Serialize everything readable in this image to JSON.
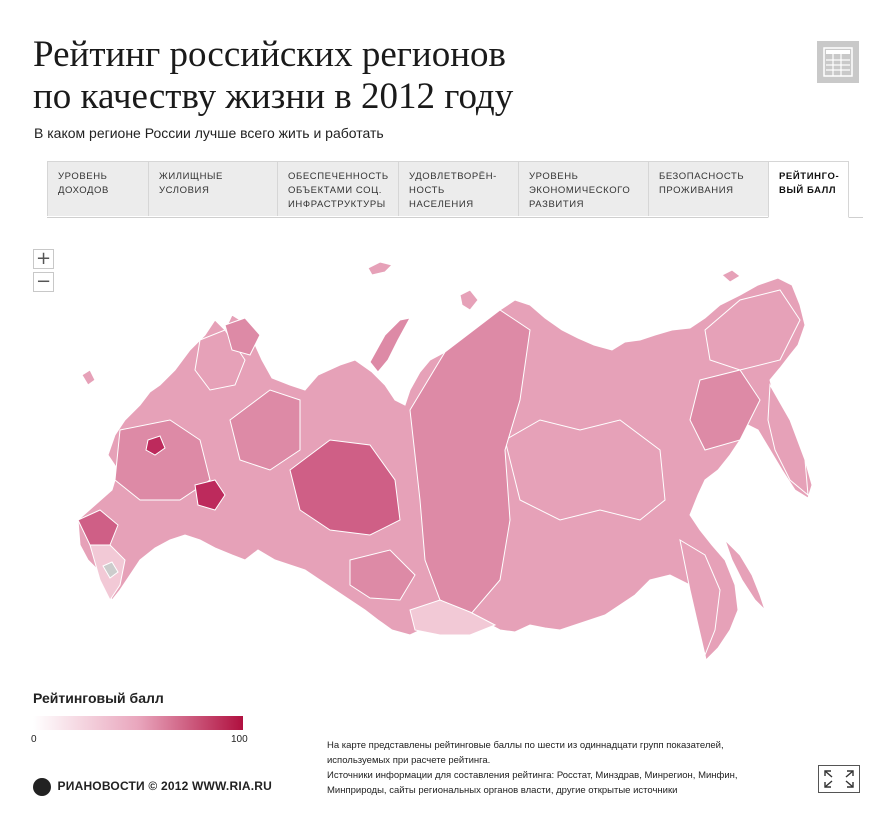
{
  "header": {
    "title_line1": "Рейтинг российских регионов",
    "title_line2": "по качеству жизни в 2012 году",
    "subtitle": "В каком регионе России лучше всего жить и работать"
  },
  "tabs": [
    {
      "line1": "Уровень",
      "line2": "доходов",
      "line3": ""
    },
    {
      "line1": "Жилищные",
      "line2": "условия",
      "line3": ""
    },
    {
      "line1": "Обеспеченность",
      "line2": "объектами соц.",
      "line3": "инфраструктуры"
    },
    {
      "line1": "Удовлетворён-",
      "line2": "ность населения",
      "line3": ""
    },
    {
      "line1": "Уровень",
      "line2": "экономического",
      "line3": "развития"
    },
    {
      "line1": "Безопасность",
      "line2": "проживания",
      "line3": ""
    },
    {
      "line1": "Рейтинго-",
      "line2": "вый балл",
      "line3": ""
    }
  ],
  "active_tab": "Рейтинго- вый балл",
  "zoom": {
    "in": "+",
    "out": "−"
  },
  "legend": {
    "title": "Рейтинговый балл",
    "min": "0",
    "max": "100",
    "color_low": "#ffffff",
    "color_high": "#b0103f"
  },
  "map_colors": {
    "light": "#f2c9d6",
    "medium": "#e6a1b8",
    "strong": "#dd8aa6",
    "dark": "#cf5f86",
    "top": "#bd2a5c",
    "no_data": "#cccccc",
    "border": "#ffffff"
  },
  "footer": {
    "logo_text": "РИАНОВОСТИ © 2012 WWW.RIA.RU",
    "note_line1": "На карте представлены рейтинговые баллы по шести из одиннадцати групп показателей,",
    "note_line2": "используемых при расчете рейтинга.",
    "note_line3": "Источники информации для составления рейтинга: Росстат, Минздрав, Минрегион, Минфин,",
    "note_line4": "Минприроды, сайты региональных органов власти, другие открытые источники"
  },
  "icons": {
    "table": "table-icon",
    "expand": "expand-icon"
  }
}
